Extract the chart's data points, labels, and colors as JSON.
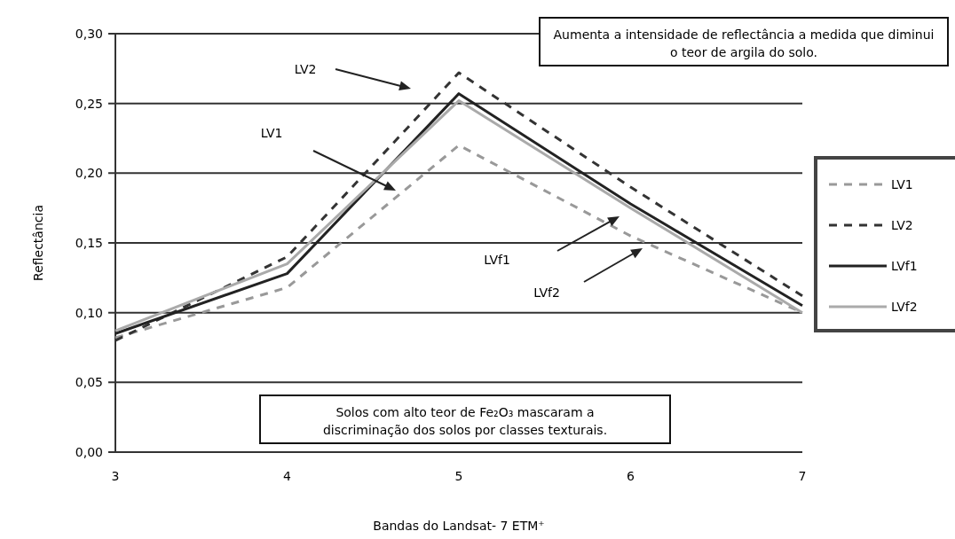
{
  "chart_data": {
    "type": "line",
    "xlabel": "Bandas do Landsat- 7 ETM⁺",
    "ylabel": "Reflectância",
    "x": [
      3,
      4,
      5,
      6,
      7
    ],
    "xlim": [
      3,
      7
    ],
    "xticks": [
      3,
      4,
      5,
      6,
      7
    ],
    "ylim": [
      0,
      0.3
    ],
    "yticks": [
      {
        "value": 0,
        "label": "0,00"
      },
      {
        "value": 0.05,
        "label": "0,05"
      },
      {
        "value": 0.1,
        "label": "0,10"
      },
      {
        "value": 0.15,
        "label": "0,15"
      },
      {
        "value": 0.2,
        "label": "0,20"
      },
      {
        "value": 0.25,
        "label": "0,25"
      },
      {
        "value": 0.3,
        "label": "0,30"
      }
    ],
    "grid": "y",
    "legend": "right",
    "marker": "none",
    "series": [
      {
        "name": "LV1",
        "color": "#999999",
        "line_style": "dashed",
        "values": [
          0.082,
          0.118,
          0.22,
          0.155,
          0.1
        ]
      },
      {
        "name": "LV2",
        "color": "#333333",
        "line_style": "dashed",
        "values": [
          0.08,
          0.14,
          0.272,
          0.19,
          0.112
        ]
      },
      {
        "name": "LVf1",
        "color": "#222222",
        "line_style": "solid",
        "values": [
          0.085,
          0.128,
          0.257,
          0.178,
          0.105
        ]
      },
      {
        "name": "LVf2",
        "color": "#aaaaaa",
        "line_style": "solid",
        "values": [
          0.087,
          0.135,
          0.252,
          0.175,
          0.1
        ]
      }
    ],
    "annotations": [
      "Aumenta a intensidade de reflectância a medida que diminui o teor de argila do solo.",
      "Solos com alto teor de Fe₂O₃ mascaram a discriminação dos solos por classes texturais.",
      "LV2",
      "LV1",
      "LVf1",
      "LVf2"
    ]
  }
}
